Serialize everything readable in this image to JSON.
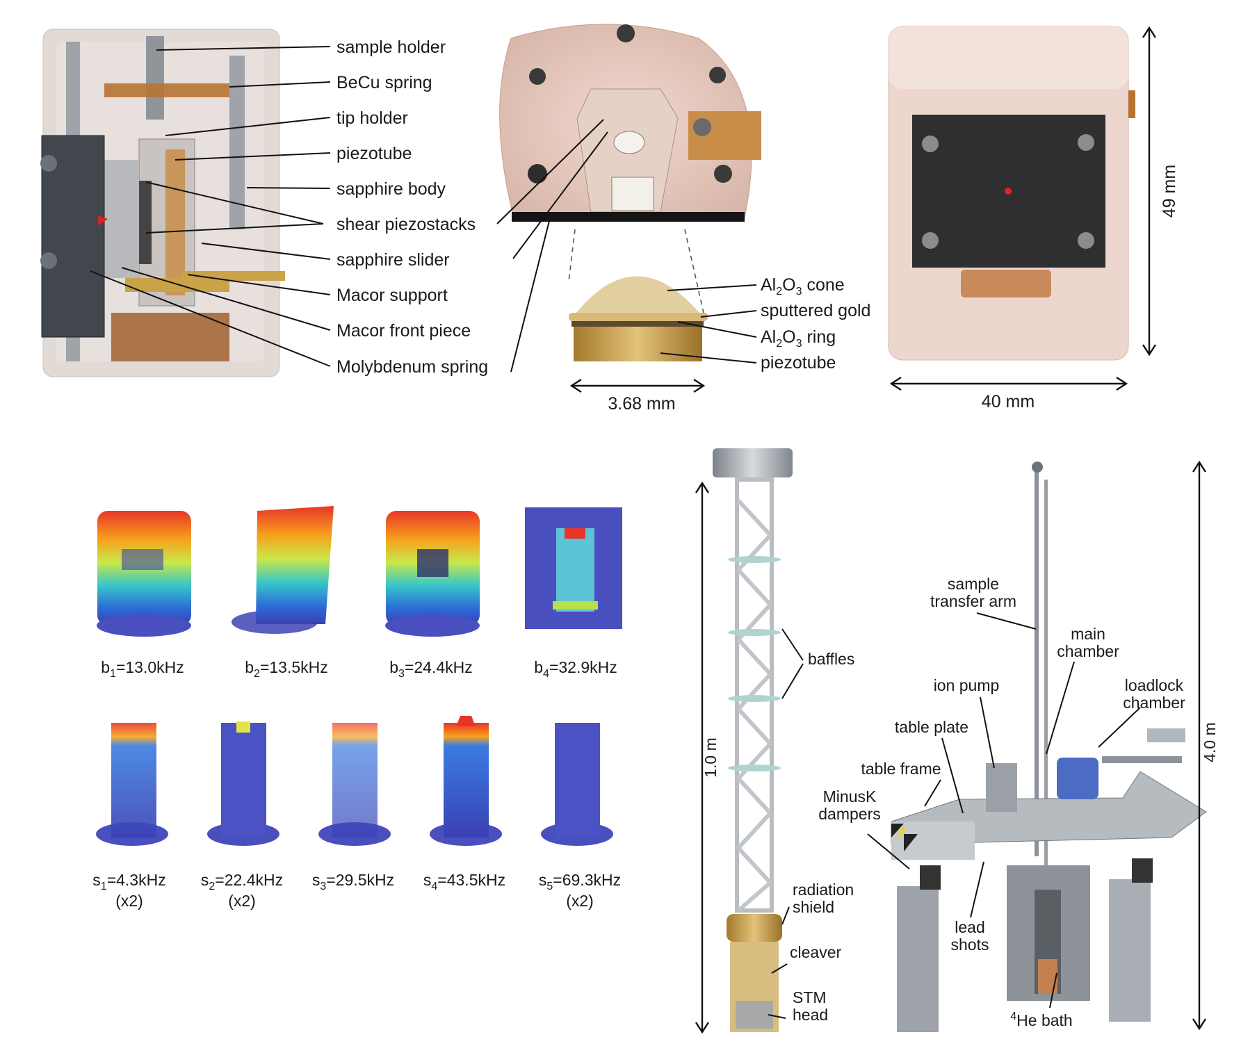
{
  "panel_a": {
    "labels": [
      "sample holder",
      "BeCu spring",
      "tip holder",
      "piezotube",
      "sapphire body",
      "shear piezostacks",
      "sapphire slider",
      "Macor support",
      "Macor front piece",
      "Molybdenum spring"
    ]
  },
  "panel_b": {
    "labels": {
      "cone_main": "Al",
      "cone_sub1": "2",
      "cone_mid": "O",
      "cone_sub2": "3",
      "cone_end": " cone",
      "gold": "sputtered gold",
      "ring_main": "Al",
      "ring_sub1": "2",
      "ring_mid": "O",
      "ring_sub2": "3",
      "ring_end": " ring",
      "piezotube": "piezotube"
    },
    "scale": "3.68 mm"
  },
  "panel_c": {
    "width": "40 mm",
    "height": "49 mm"
  },
  "modes_bending": [
    {
      "sym": "b",
      "idx": "1",
      "val": "=13.0kHz"
    },
    {
      "sym": "b",
      "idx": "2",
      "val": "=13.5kHz"
    },
    {
      "sym": "b",
      "idx": "3",
      "val": "=24.4kHz"
    },
    {
      "sym": "b",
      "idx": "4",
      "val": "=32.9kHz"
    }
  ],
  "modes_stretch": [
    {
      "sym": "s",
      "idx": "1",
      "val": "=4.3kHz",
      "mult": "(x2)"
    },
    {
      "sym": "s",
      "idx": "2",
      "val": "=22.4kHz",
      "mult": "(x2)"
    },
    {
      "sym": "s",
      "idx": "3",
      "val": "=29.5kHz",
      "mult": ""
    },
    {
      "sym": "s",
      "idx": "4",
      "val": "=43.5kHz",
      "mult": ""
    },
    {
      "sym": "s",
      "idx": "5",
      "val": "=69.3kHz",
      "mult": "(x2)"
    }
  ],
  "panel_e": {
    "height": "1.0 m",
    "baffles": "baffles",
    "radiation1": "radiation",
    "radiation2": "shield",
    "cleaver": "cleaver",
    "stm1": "STM",
    "stm2": "head"
  },
  "panel_f": {
    "height": "4.0 m",
    "sample1": "sample",
    "sample2": "transfer arm",
    "main1": "main",
    "main2": "chamber",
    "ionpump": "ion pump",
    "loadlock1": "loadlock",
    "loadlock2": "chamber",
    "tableplate": "table plate",
    "tableframe": "table frame",
    "minusk1": "MinusK",
    "minusk2": "dampers",
    "lead1": "lead",
    "lead2": "shots",
    "he_sup": "4",
    "he": "He bath"
  },
  "colors": {
    "copper": "#b87333",
    "gold": "#c9a24a",
    "sapphire": "#d9cfc8",
    "steel": "#9ea4aa"
  }
}
